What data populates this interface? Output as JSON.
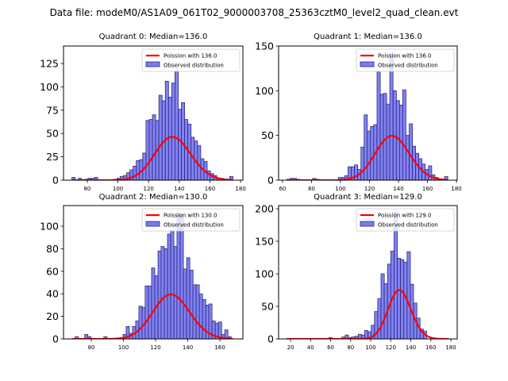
{
  "figure": {
    "suptitle": "Data file: modeM0/AS1A09_061T02_9000003708_25363cztM0_level2_quad_clean.evt"
  },
  "chart_data": [
    {
      "type": "bar",
      "title": "Quadrant 0: Median=136.0",
      "xlabel": "",
      "ylabel": "",
      "xlim": [
        64.5,
        181.5
      ],
      "ylim": [
        0,
        143.7
      ],
      "xticks": [
        80,
        100,
        120,
        140,
        160,
        180
      ],
      "yticks": [
        0,
        25,
        50,
        75,
        100,
        125
      ],
      "grid": false,
      "legend": {
        "position": "top-right",
        "entries": [
          "Poission with 136.0",
          "Observed distribution"
        ]
      },
      "bin_width": 2.1,
      "histogram": {
        "name": "Observed distribution",
        "bin_left": [
          70,
          72.1,
          74.2,
          76.3,
          78.4,
          80.5,
          82.6,
          84.7,
          86.8,
          88.9,
          91,
          93.1,
          95.2,
          97.3,
          99.4,
          101.5,
          103.6,
          105.7,
          107.8,
          109.9,
          112,
          114.1,
          116.2,
          118.3,
          120.4,
          122.5,
          124.6,
          126.7,
          128.8,
          130.9,
          133,
          135.1,
          137.2,
          139.3,
          141.4,
          143.5,
          145.6,
          147.7,
          149.8,
          151.9,
          154,
          156.1,
          158.2,
          160.3,
          162.4,
          164.5,
          166.6,
          168.7,
          170.8,
          172.9
        ],
        "values": [
          3,
          0,
          2,
          0,
          1,
          2,
          2,
          3,
          0,
          0,
          0,
          0,
          0,
          1,
          2,
          4,
          5,
          8,
          11,
          15,
          21,
          22,
          29,
          64,
          65,
          70,
          64,
          91,
          85,
          106,
          89,
          104,
          117,
          76,
          83,
          65,
          60,
          46,
          42,
          37,
          23,
          20,
          10,
          7,
          5,
          2,
          2,
          1,
          0,
          4
        ]
      },
      "poisson": {
        "name": "Poission with 136.0",
        "mean": 136.0,
        "scale": 1357,
        "x_range": [
          70,
          175
        ]
      },
      "colors": {
        "bar_fill": "#7b7bf3",
        "bar_edge": "#2a2a78",
        "curve": "#ff0000"
      }
    },
    {
      "type": "bar",
      "title": "Quadrant 1: Median=136.0",
      "xlabel": "",
      "ylabel": "",
      "xlim": [
        57.3,
        180.5
      ],
      "ylim": [
        0,
        150
      ],
      "xticks": [
        60,
        80,
        100,
        120,
        140,
        160,
        180
      ],
      "yticks": [
        0,
        50,
        100,
        150
      ],
      "grid": false,
      "legend": {
        "position": "top-right",
        "entries": [
          "Poission with 136.0",
          "Observed distribution"
        ]
      },
      "bin_width": 2.22,
      "histogram": {
        "name": "Observed distribution",
        "bin_left": [
          63,
          65.2,
          67.4,
          69.7,
          71.9,
          74.1,
          76.3,
          78.5,
          80.8,
          83,
          85.2,
          87.4,
          89.6,
          91.9,
          94.1,
          96.3,
          98.5,
          100.7,
          103,
          105.2,
          107.4,
          109.6,
          111.8,
          114.1,
          116.3,
          118.5,
          120.7,
          122.9,
          125.2,
          127.4,
          129.6,
          131.8,
          134,
          136.3,
          138.5,
          140.7,
          142.9,
          145.1,
          147.4,
          149.6,
          151.8,
          154,
          156.2,
          158.5,
          160.7,
          162.9,
          165.1,
          167.3,
          169.6,
          171.8
        ],
        "values": [
          1,
          2,
          2,
          1,
          0,
          0,
          0,
          0,
          2,
          1,
          0,
          0,
          0,
          0,
          0,
          0,
          3,
          3,
          5,
          15,
          15,
          17,
          12,
          37,
          73,
          55,
          60,
          62,
          122,
          96,
          97,
          85,
          141,
          100,
          89,
          84,
          101,
          50,
          63,
          38,
          30,
          24,
          18,
          12,
          16,
          6,
          3,
          1,
          1,
          4
        ]
      },
      "poisson": {
        "name": "Poission with 136.0",
        "mean": 136.0,
        "scale": 1451,
        "x_range": [
          63,
          174
        ]
      },
      "colors": {
        "bar_fill": "#7b7bf3",
        "bar_edge": "#2a2a78",
        "curve": "#ff0000"
      }
    },
    {
      "type": "bar",
      "title": "Quadrant 2: Median=130.0",
      "xlabel": "",
      "ylabel": "",
      "xlim": [
        62.7,
        174.3
      ],
      "ylim": [
        0,
        118.3
      ],
      "xticks": [
        80,
        100,
        120,
        140,
        160
      ],
      "yticks": [
        0,
        20,
        40,
        60,
        80,
        100
      ],
      "grid": false,
      "legend": {
        "position": "top-right",
        "entries": [
          "Poission with 130.0",
          "Observed distribution"
        ]
      },
      "bin_width": 1.98,
      "histogram": {
        "name": "Observed distribution",
        "bin_left": [
          68,
          70,
          72,
          73.9,
          75.9,
          77.9,
          79.9,
          81.9,
          83.8,
          85.8,
          87.8,
          89.8,
          91.8,
          93.7,
          95.7,
          97.7,
          99.7,
          101.7,
          103.6,
          105.6,
          107.6,
          109.6,
          111.6,
          113.5,
          115.5,
          117.5,
          119.5,
          121.5,
          123.4,
          125.4,
          127.4,
          129.4,
          131.4,
          133.3,
          135.3,
          137.3,
          139.3,
          141.3,
          143.2,
          145.2,
          147.2,
          149.2,
          151.2,
          153.1,
          155.1,
          157.1,
          159.1,
          161.1,
          163,
          165
        ],
        "values": [
          0,
          2,
          0,
          0,
          4,
          2,
          0,
          0,
          0,
          0,
          2,
          0,
          0,
          0,
          0,
          0,
          4,
          11,
          5,
          11,
          16,
          29,
          28,
          47,
          47,
          63,
          56,
          78,
          82,
          80,
          93,
          96,
          82,
          111,
          110,
          62,
          72,
          61,
          48,
          48,
          40,
          35,
          30,
          31,
          16,
          14,
          15,
          4,
          8,
          2
        ]
      },
      "poisson": {
        "name": "Poission with 130.0",
        "mean": 130.0,
        "scale": 1130,
        "x_range": [
          68,
          168
        ]
      },
      "colors": {
        "bar_fill": "#7b7bf3",
        "bar_edge": "#2a2a78",
        "curve": "#ff0000"
      }
    },
    {
      "type": "bar",
      "title": "Quadrant 3: Median=129.0",
      "xlabel": "",
      "ylabel": "",
      "xlim": [
        8.1,
        186.3
      ],
      "ylim": [
        0,
        204.9
      ],
      "xticks": [
        20,
        40,
        60,
        80,
        100,
        120,
        140,
        160,
        180
      ],
      "yticks": [
        0,
        50,
        100,
        150,
        200
      ],
      "grid": false,
      "legend": {
        "position": "top-right",
        "entries": [
          "Poission with 129.0",
          "Observed distribution"
        ]
      },
      "bin_width": 3.25,
      "histogram": {
        "name": "Observed distribution",
        "bin_left": [
          16,
          19.3,
          22.5,
          25.8,
          29,
          32.3,
          35.5,
          38.8,
          42,
          45.3,
          48.5,
          51.8,
          55,
          58.3,
          61.5,
          64.8,
          68,
          71.3,
          74.5,
          77.8,
          81,
          84.3,
          87.5,
          90.8,
          94,
          97.3,
          100.5,
          103.8,
          107,
          110.3,
          113.5,
          116.8,
          120,
          123.3,
          126.5,
          129.8,
          133,
          136.3,
          139.5,
          142.8,
          146,
          149.3,
          152.5,
          155.8,
          159,
          162.3,
          165.5,
          168.8,
          172,
          175.3
        ],
        "values": [
          0,
          0,
          0,
          0,
          0,
          0,
          0,
          0,
          0,
          0,
          0,
          0,
          0,
          2,
          0,
          0,
          0,
          3,
          6,
          2,
          3,
          4,
          7,
          6,
          13,
          11,
          21,
          42,
          62,
          100,
          85,
          115,
          135,
          195,
          124,
          122,
          118,
          134,
          84,
          55,
          32,
          15,
          12,
          0,
          0,
          0,
          0,
          0,
          0,
          0
        ]
      },
      "poisson": {
        "name": "Poission with 129.0",
        "mean": 129.0,
        "scale": 2140,
        "x_range": [
          16,
          178
        ]
      },
      "colors": {
        "bar_fill": "#7b7bf3",
        "bar_edge": "#2a2a78",
        "curve": "#ff0000"
      }
    }
  ]
}
